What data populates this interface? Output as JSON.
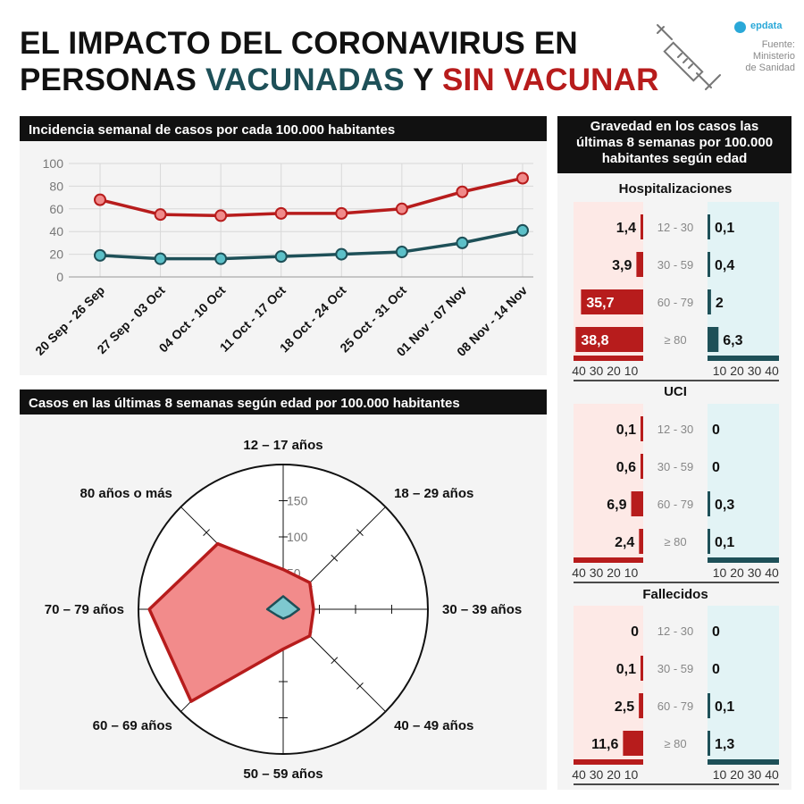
{
  "header": {
    "title_line1": "EL IMPACTO DEL CORONAVIRUS EN",
    "title_line2_a": "PERSONAS ",
    "title_line2_b": "VACUNADAS",
    "title_line2_c": " Y ",
    "title_line2_d": "SIN VACUNAR",
    "brand": "epdata",
    "source_label": "Fuente:",
    "source_1": "Ministerio",
    "source_2": "de Sanidad"
  },
  "colors": {
    "vacunados": "#1e5058",
    "sin_vacunar": "#b71c1c",
    "sin_vacunar_fill": "#f28b8b",
    "vacunados_fill": "#7ec8cf"
  },
  "line_panel": {
    "title": "Incidencia semanal de casos por cada 100.000 habitantes"
  },
  "radar_panel": {
    "title": "Casos en las últimas 8 semanas según edad por 100.000 habitantes"
  },
  "severity_panel": {
    "title_1": "Gravedad en los casos las",
    "title_2": "últimas 8 semanas por 100.000",
    "title_3": "habitantes según edad"
  },
  "chart_data": [
    {
      "type": "line",
      "title": "Incidencia semanal de casos por cada 100.000 habitantes",
      "x": [
        "20 Sep - 26 Sep",
        "27 Sep - 03 Oct",
        "04 Oct - 10 Oct",
        "11 Oct - 17 Oct",
        "18 Oct - 24 Oct",
        "25 Oct - 31 Oct",
        "01 Nov - 07 Nov",
        "08 Nov - 14 Nov"
      ],
      "series": [
        {
          "color": "#b71c1c",
          "values": [
            68,
            55,
            54,
            56,
            56,
            60,
            75,
            87
          ]
        },
        {
          "color": "#1e5058",
          "values": [
            19,
            16,
            16,
            18,
            20,
            22,
            30,
            41
          ]
        }
      ],
      "ylim": [
        0,
        100
      ],
      "yticks": [
        0,
        20,
        40,
        60,
        80,
        100
      ],
      "grid": true
    },
    {
      "type": "radar",
      "title": "Casos en las últimas 8 semanas según edad por 100.000 habitantes",
      "axes": [
        "12 – 17 años",
        "18 – 29 años",
        "30 – 39 años",
        "40 – 49 años",
        "50 – 59 años",
        "60 – 69 años",
        "70 – 79 años",
        "80 años o más"
      ],
      "ticks": [
        50,
        100,
        150
      ],
      "rmax": 200,
      "series": [
        {
          "color": "#b71c1c",
          "values": [
            55,
            52,
            42,
            52,
            55,
            180,
            185,
            128
          ]
        },
        {
          "color": "#1e5058",
          "values": [
            18,
            14,
            22,
            13,
            13,
            12,
            22,
            14
          ]
        }
      ]
    },
    {
      "type": "bar",
      "title": "Hospitalizaciones",
      "categories": [
        "12 - 30",
        "30 - 59",
        "60 - 79",
        "≥ 80"
      ],
      "series": [
        {
          "color": "#b71c1c",
          "values": [
            1.4,
            3.9,
            35.7,
            38.8
          ],
          "labels": [
            "1,4",
            "3,9",
            "35,7",
            "38,8"
          ]
        },
        {
          "color": "#1e5058",
          "values": [
            0.1,
            0.4,
            2,
            6.3
          ],
          "labels": [
            "0,1",
            "0,4",
            "2",
            "6,3"
          ]
        }
      ],
      "xticks": [
        "10",
        "20",
        "30",
        "40"
      ]
    },
    {
      "type": "bar",
      "title": "UCI",
      "categories": [
        "12 - 30",
        "30 - 59",
        "60 - 79",
        "≥ 80"
      ],
      "series": [
        {
          "color": "#b71c1c",
          "values": [
            0.1,
            0.6,
            6.9,
            2.4
          ],
          "labels": [
            "0,1",
            "0,6",
            "6,9",
            "2,4"
          ]
        },
        {
          "color": "#1e5058",
          "values": [
            0,
            0,
            0.3,
            0.1
          ],
          "labels": [
            "0",
            "0",
            "0,3",
            "0,1"
          ]
        }
      ],
      "xticks": [
        "10",
        "20",
        "30",
        "40"
      ]
    },
    {
      "type": "bar",
      "title": "Fallecidos",
      "categories": [
        "12 - 30",
        "30 - 59",
        "60 - 79",
        "≥ 80"
      ],
      "series": [
        {
          "color": "#b71c1c",
          "values": [
            0,
            0.1,
            2.5,
            11.6
          ],
          "labels": [
            "0",
            "0,1",
            "2,5",
            "11,6"
          ]
        },
        {
          "color": "#1e5058",
          "values": [
            0,
            0,
            0.1,
            1.3
          ],
          "labels": [
            "0",
            "0",
            "0,1",
            "1,3"
          ]
        }
      ],
      "xticks": [
        "10",
        "20",
        "30",
        "40"
      ]
    }
  ]
}
